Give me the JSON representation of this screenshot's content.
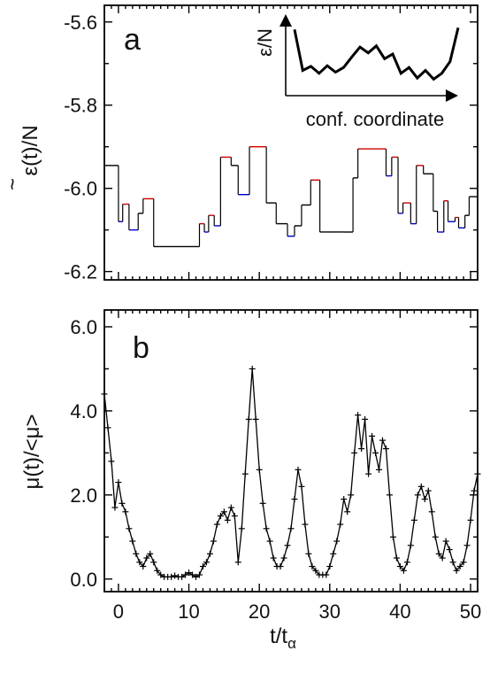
{
  "chart_data": [
    {
      "panel": "a",
      "type": "line",
      "ylabel": "ε(t)/N",
      "ylabel_accent": "~",
      "ylim": [
        -6.22,
        -5.56
      ],
      "xlim": [
        -2,
        51
      ],
      "y_ticks": [
        -5.6,
        -5.8,
        -6.0,
        -6.2
      ],
      "y_tick_labels": [
        "-5.6",
        "-5.8",
        "-6.0",
        "-6.2"
      ],
      "grid": false,
      "colors": {
        "trace": "#000000",
        "local_max": "#cc0000",
        "local_min": "#0000cc"
      },
      "series": [
        {
          "style": "step",
          "x": [
            -2.0,
            0.0,
            0.6,
            1.5,
            2.8,
            3.5,
            5.0,
            5.8,
            11.5,
            12.2,
            12.8,
            13.6,
            14.5,
            16.0,
            17.0,
            18.6,
            21.0,
            22.4,
            24.0,
            25.0,
            26.0,
            27.3,
            28.6,
            32.0,
            33.3,
            34.0,
            38.0,
            38.8,
            39.7,
            40.4,
            41.5,
            42.3,
            43.3,
            44.7,
            45.3,
            46.2,
            46.8,
            47.8,
            48.3,
            49.2,
            49.8,
            51.0
          ],
          "y": [
            -5.945,
            -6.08,
            -6.038,
            -6.1,
            -6.06,
            -6.025,
            -6.14,
            -6.14,
            -6.085,
            -6.105,
            -6.065,
            -6.09,
            -5.925,
            -5.945,
            -6.015,
            -5.9,
            -6.035,
            -6.085,
            -6.115,
            -6.09,
            -6.04,
            -5.98,
            -6.105,
            -6.105,
            -5.975,
            -5.905,
            -5.97,
            -5.925,
            -6.06,
            -6.035,
            -6.085,
            -5.945,
            -5.965,
            -6.055,
            -6.105,
            -6.03,
            -6.08,
            -6.07,
            -6.095,
            -6.065,
            -6.02,
            -6.02
          ]
        }
      ],
      "inset": {
        "ylabel": "ε/N",
        "xlabel": "conf. coordinate",
        "curve_x": [
          0.0,
          0.05,
          0.1,
          0.15,
          0.2,
          0.25,
          0.3,
          0.35,
          0.4,
          0.45,
          0.5,
          0.55,
          0.6,
          0.65,
          0.7,
          0.75,
          0.8,
          0.85,
          0.9,
          0.95,
          1.0
        ],
        "curve_y": [
          0.95,
          0.25,
          0.32,
          0.2,
          0.33,
          0.22,
          0.3,
          0.48,
          0.65,
          0.55,
          0.67,
          0.45,
          0.53,
          0.2,
          0.3,
          0.12,
          0.25,
          0.1,
          0.2,
          0.4,
          0.98
        ]
      }
    },
    {
      "panel": "b",
      "type": "line",
      "ylabel": "μ(t)/<μ>",
      "xlabel": "t/t",
      "xlabel_subscript": "α",
      "xlim": [
        -2,
        51
      ],
      "ylim": [
        -0.3,
        6.4
      ],
      "y_ticks": [
        0.0,
        2.0,
        4.0,
        6.0
      ],
      "y_tick_labels": [
        "0.0",
        "2.0",
        "4.0",
        "6.0"
      ],
      "x_ticks": [
        0,
        10,
        20,
        30,
        40,
        50
      ],
      "x_tick_labels": [
        "0",
        "10",
        "20",
        "30",
        "40",
        "50"
      ],
      "grid": false,
      "marker": "+",
      "series": [
        {
          "style": "line+marker",
          "x": [
            -2.0,
            -1.5,
            -1.0,
            -0.5,
            0.0,
            0.5,
            1.0,
            1.5,
            2.0,
            2.5,
            3.0,
            3.5,
            4.0,
            4.5,
            5.0,
            5.5,
            6.0,
            6.5,
            7.0,
            7.5,
            8.0,
            8.5,
            9.0,
            9.5,
            10.0,
            10.5,
            11.0,
            11.5,
            12.0,
            12.5,
            13.0,
            13.5,
            14.0,
            14.5,
            15.0,
            15.5,
            16.0,
            16.5,
            17.0,
            17.5,
            18.0,
            18.5,
            19.0,
            19.5,
            20.0,
            20.5,
            21.0,
            21.5,
            22.0,
            22.5,
            23.0,
            23.5,
            24.0,
            24.5,
            25.0,
            25.5,
            26.0,
            26.5,
            27.0,
            27.5,
            28.0,
            28.5,
            29.0,
            29.5,
            30.0,
            30.5,
            31.0,
            31.5,
            32.0,
            32.5,
            33.0,
            33.5,
            34.0,
            34.5,
            35.0,
            35.5,
            36.0,
            36.5,
            37.0,
            37.5,
            38.0,
            38.5,
            39.0,
            39.5,
            40.0,
            40.5,
            41.0,
            41.5,
            42.0,
            42.5,
            43.0,
            43.5,
            44.0,
            44.5,
            45.0,
            45.5,
            46.0,
            46.5,
            47.0,
            47.5,
            48.0,
            48.5,
            49.0,
            49.5,
            50.0,
            50.5,
            51.0
          ],
          "y": [
            4.4,
            3.6,
            2.8,
            1.7,
            2.3,
            1.8,
            1.6,
            1.2,
            0.9,
            0.6,
            0.4,
            0.3,
            0.5,
            0.6,
            0.4,
            0.2,
            0.1,
            0.05,
            0.05,
            0.05,
            0.08,
            0.05,
            0.05,
            0.1,
            0.15,
            0.1,
            0.05,
            0.1,
            0.3,
            0.4,
            0.6,
            0.9,
            1.3,
            1.5,
            1.6,
            1.4,
            1.7,
            1.5,
            0.4,
            1.2,
            2.5,
            3.8,
            5.0,
            3.8,
            2.6,
            1.8,
            1.2,
            0.9,
            0.5,
            0.3,
            0.3,
            0.5,
            0.8,
            1.2,
            1.9,
            2.6,
            2.2,
            1.3,
            0.6,
            0.3,
            0.2,
            0.1,
            0.1,
            0.1,
            0.3,
            0.6,
            0.9,
            1.3,
            1.9,
            1.6,
            2.0,
            3.0,
            3.9,
            3.1,
            3.8,
            2.5,
            3.4,
            3.0,
            2.6,
            3.3,
            3.1,
            2.0,
            1.0,
            0.5,
            0.3,
            0.2,
            0.4,
            0.8,
            1.4,
            2.0,
            2.2,
            1.9,
            2.1,
            1.6,
            1.0,
            0.6,
            0.5,
            0.9,
            0.7,
            0.4,
            0.2,
            0.3,
            0.4,
            0.8,
            1.4,
            2.1,
            2.5
          ]
        }
      ]
    }
  ]
}
